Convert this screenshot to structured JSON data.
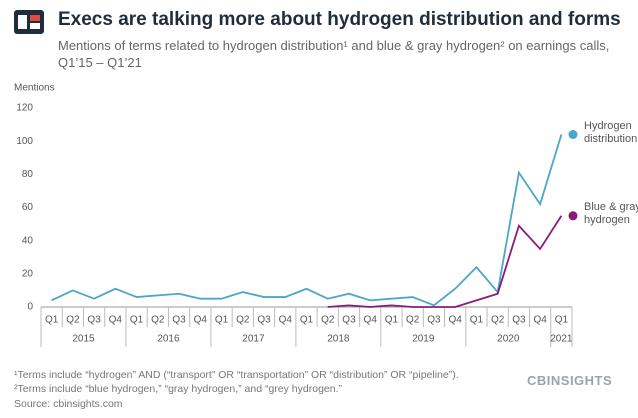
{
  "title": "Execs are talking more about hydrogen distribution and forms",
  "subtitle": "Mentions of terms related to hydrogen distribution¹ and blue & gray hydrogen² on earnings calls, Q1’15 – Q1’21",
  "footnotes": [
    "¹Terms include “hydrogen” AND (“transport” OR “transportation” OR “distribution” OR “pipeline”).",
    "²Terms include “blue hydrogen,” “gray hydrogen,” and “grey hydrogen.”",
    "Source: cbinsights.com"
  ],
  "logo": "CBINSIGHTS",
  "chart_data": {
    "type": "line",
    "y_label": "Mentions",
    "categories": [
      "Q1",
      "Q2",
      "Q3",
      "Q4",
      "Q1",
      "Q2",
      "Q3",
      "Q4",
      "Q1",
      "Q2",
      "Q3",
      "Q4",
      "Q1",
      "Q2",
      "Q3",
      "Q4",
      "Q1",
      "Q2",
      "Q3",
      "Q4",
      "Q1",
      "Q2",
      "Q3",
      "Q4",
      "Q1"
    ],
    "years": [
      "2015",
      "2016",
      "2017",
      "2018",
      "2019",
      "2020",
      "2021"
    ],
    "series": [
      {
        "name": "Hydrogen distribution",
        "color": "#4ba6c8",
        "values": [
          4,
          10,
          5,
          11,
          6,
          7,
          8,
          5,
          5,
          9,
          6,
          6,
          11,
          5,
          8,
          4,
          5,
          6,
          1,
          11,
          24,
          9,
          81,
          62,
          104
        ]
      },
      {
        "name": "Blue & gray hydrogen",
        "color": "#8b1a7e",
        "values": [
          null,
          null,
          null,
          null,
          null,
          null,
          null,
          null,
          null,
          null,
          null,
          null,
          null,
          0,
          1,
          0,
          1,
          0,
          0,
          0,
          4,
          8,
          49,
          35,
          55
        ]
      }
    ],
    "ylim": [
      0,
      120
    ],
    "yticks": [
      0,
      20,
      40,
      60,
      80,
      100,
      120
    ]
  }
}
